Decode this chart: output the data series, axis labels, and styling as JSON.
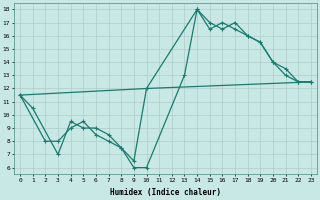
{
  "line1_x": [
    0,
    1,
    3,
    4,
    5,
    6,
    7,
    8,
    9,
    10,
    13,
    14,
    15,
    16,
    17,
    18,
    19,
    20,
    21,
    22,
    23
  ],
  "line1_y": [
    11.5,
    10.5,
    7.0,
    9.5,
    9.0,
    9.0,
    8.5,
    7.5,
    6.0,
    6.0,
    13.0,
    18.0,
    17.0,
    16.5,
    17.0,
    16.0,
    15.5,
    14.0,
    13.0,
    12.5,
    12.5
  ],
  "line2_x": [
    0,
    2,
    3,
    4,
    5,
    6,
    7,
    8,
    9,
    10,
    14,
    15,
    16,
    17,
    18,
    19,
    20,
    21,
    22,
    23
  ],
  "line2_y": [
    11.5,
    8.0,
    8.0,
    9.0,
    9.5,
    8.5,
    8.0,
    7.5,
    6.5,
    12.0,
    18.0,
    16.5,
    17.0,
    16.5,
    16.0,
    15.5,
    14.0,
    13.5,
    12.5,
    12.5
  ],
  "line3_x": [
    0,
    10,
    23
  ],
  "line3_y": [
    11.5,
    12.0,
    12.5
  ],
  "line_color": "#1a7a6e",
  "bg_color": "#c8e8e5",
  "grid_color": "#b0ccca",
  "xlabel": "Humidex (Indice chaleur)",
  "xlim": [
    -0.5,
    23.5
  ],
  "ylim": [
    5.5,
    18.5
  ],
  "yticks": [
    6,
    7,
    8,
    9,
    10,
    11,
    12,
    13,
    14,
    15,
    16,
    17,
    18
  ],
  "xticks": [
    0,
    1,
    2,
    3,
    4,
    5,
    6,
    7,
    8,
    9,
    10,
    11,
    12,
    13,
    14,
    15,
    16,
    17,
    18,
    19,
    20,
    21,
    22,
    23
  ],
  "marker": "+",
  "markersize": 3,
  "linewidth": 0.9
}
